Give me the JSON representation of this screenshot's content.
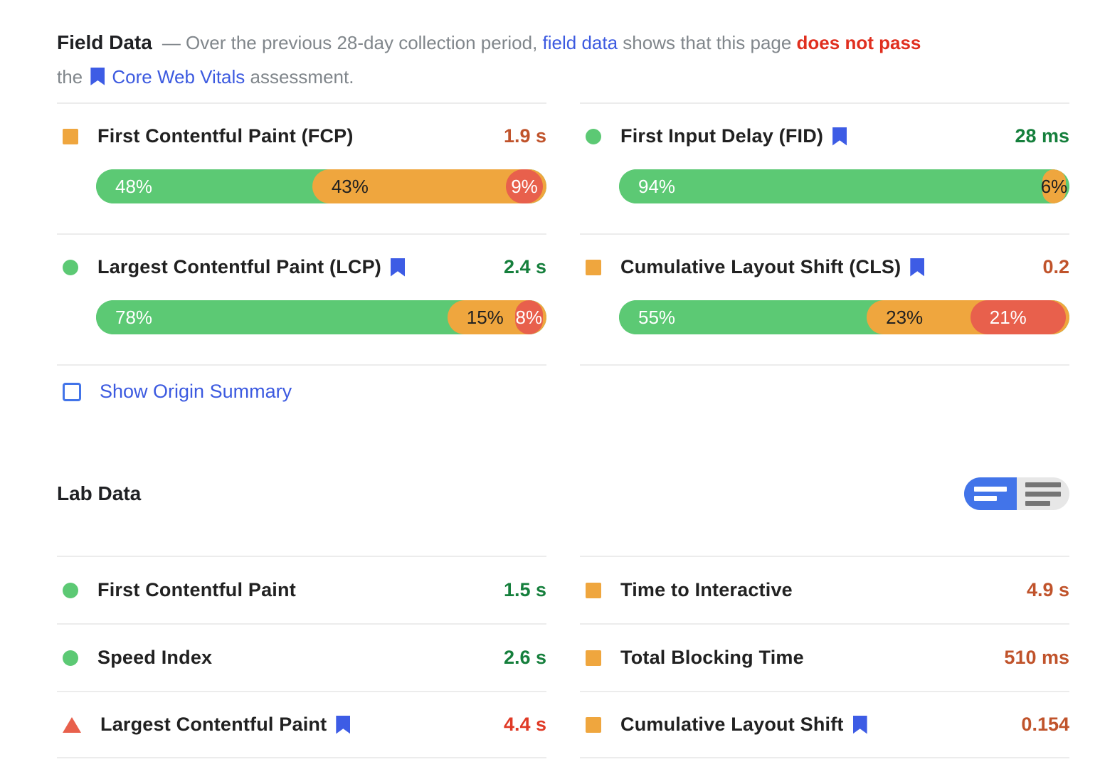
{
  "header": {
    "line1": [
      {
        "t": "Field Data",
        "c": "h-title",
        "n": "field-data-title"
      },
      {
        "t": "— Over the previous 28-day collection period, ",
        "c": "gray"
      },
      {
        "t": "field data",
        "c": "link",
        "n": "field-data-link"
      },
      {
        "t": " shows that this page ",
        "c": "gray"
      },
      {
        "t": "does not pass",
        "c": "red-bold",
        "n": "does-not-pass-text"
      }
    ],
    "line2": [
      {
        "t": "the ",
        "c": "gray"
      },
      {
        "icon": "bookmark-icon"
      },
      {
        "t": "Core Web Vitals",
        "c": "link",
        "n": "core-web-vitals-link"
      },
      {
        "t": " assessment.",
        "c": "gray"
      }
    ]
  },
  "field": {
    "metrics": [
      {
        "label": "First Contentful Paint (FCP)",
        "icon": "average-square-icon",
        "value": "1.9 s",
        "value_tone": "average",
        "segments": [
          {
            "tone": "good",
            "pct": 48,
            "label": "48%"
          },
          {
            "tone": "average",
            "pct": 43,
            "label": "43%"
          },
          {
            "tone": "poor",
            "pct": 9,
            "label": "9%"
          }
        ]
      },
      {
        "label": "First Input Delay (FID)",
        "icon": "good-circle-icon",
        "value": "28 ms",
        "value_tone": "good",
        "segments": [
          {
            "tone": "good",
            "pct": 94,
            "label": "94%"
          },
          {
            "tone": "average",
            "pct": 6,
            "label": "6%"
          }
        ]
      },
      {
        "label": "Largest Contentful Paint (LCP)",
        "icon": "good-circle-icon",
        "value": "2.4 s",
        "value_tone": "good",
        "segments": [
          {
            "tone": "good",
            "pct": 78,
            "label": "78%"
          },
          {
            "tone": "average",
            "pct": 15,
            "label": "15%"
          },
          {
            "tone": "poor",
            "pct": 8,
            "label": "8%"
          }
        ]
      },
      {
        "label": "Cumulative Layout Shift (CLS)",
        "icon": "average-square-icon",
        "value": "0.2",
        "value_tone": "average",
        "segments": [
          {
            "tone": "good",
            "pct": 55,
            "label": "55%"
          },
          {
            "tone": "average",
            "pct": 23,
            "label": "23%"
          },
          {
            "tone": "poor",
            "pct": 21,
            "label": "21%"
          }
        ]
      }
    ],
    "origin_toggle_label": "Show Origin Summary"
  },
  "lab": {
    "title": "Lab Data",
    "view_toggle": {
      "left": "compact-view",
      "right": "expanded-view"
    },
    "rows": [
      {
        "label": "First Contentful Paint",
        "icon": "good-circle-icon",
        "value": "1.5 s",
        "tone": "good"
      },
      {
        "label": "Time to Interactive",
        "icon": "average-square-icon",
        "value": "4.9 s",
        "tone": "average"
      },
      {
        "label": "Speed Index",
        "icon": "good-circle-icon",
        "value": "2.6 s",
        "tone": "good"
      },
      {
        "label": "Total Blocking Time",
        "icon": "average-square-icon",
        "value": "510 ms",
        "tone": "average"
      },
      {
        "label": "Largest Contentful Paint",
        "icon": "poor-triangle-icon",
        "value": "4.4 s",
        "tone": "poor"
      },
      {
        "label": "Cumulative Layout Shift",
        "icon": "average-square-icon",
        "value": "0.154",
        "tone": "average"
      }
    ]
  },
  "colors": {
    "bar_good": "#5CC974",
    "bar_average": "#EFA63E",
    "bar_poor": "#E8604C",
    "text_good": "#157F3C",
    "text_average": "#C0532B",
    "text_poor": "#E03A26",
    "link_blue": "#3C5AE0",
    "bookmark_blue": "#3D5CE5",
    "control_blue": "#4274E9",
    "alert_red": "#E02F1F",
    "divider": "#ECECEC",
    "body_gray": "#80868B"
  }
}
